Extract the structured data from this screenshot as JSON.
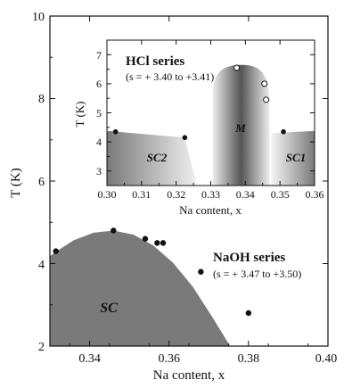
{
  "chart_data": [
    {
      "type": "scatter",
      "name": "main",
      "xlabel": "Na content, x",
      "ylabel": "T (K)",
      "xlim": [
        0.33,
        0.4
      ],
      "ylim": [
        2,
        10
      ],
      "xticks": [
        "0.34",
        "0.36",
        "0.38",
        "0.40"
      ],
      "yticks": [
        "2",
        "4",
        "6",
        "8",
        "10"
      ],
      "series": [
        {
          "name": "NaOH series",
          "subtitle": "(s = + 3.47 to +3.50)",
          "points": [
            {
              "x": 0.3315,
              "y": 4.3
            },
            {
              "x": 0.346,
              "y": 4.8
            },
            {
              "x": 0.354,
              "y": 4.6
            },
            {
              "x": 0.357,
              "y": 4.5
            },
            {
              "x": 0.3585,
              "y": 4.5
            },
            {
              "x": 0.368,
              "y": 3.8
            },
            {
              "x": 0.38,
              "y": 2.8
            }
          ]
        }
      ],
      "region_label": "SC",
      "region_color": "#7a7a7a"
    },
    {
      "type": "scatter",
      "name": "inset",
      "xlabel": "Na content, x",
      "ylabel": "T (K)",
      "xlim": [
        0.3,
        0.36
      ],
      "ylim": [
        2.5,
        7.5
      ],
      "xticks": [
        "0.30",
        "0.31",
        "0.32",
        "0.33",
        "0.34",
        "0.35",
        "0.36"
      ],
      "yticks": [
        "3",
        "4",
        "5",
        "6",
        "7"
      ],
      "series": [
        {
          "name": "HCl series",
          "subtitle": "(s = + 3.40 to +3.41)",
          "filled_points": [
            {
              "x": 0.3025,
              "y": 4.35
            },
            {
              "x": 0.3225,
              "y": 4.15
            },
            {
              "x": 0.351,
              "y": 4.35
            }
          ],
          "open_points": [
            {
              "x": 0.3375,
              "y": 6.55
            },
            {
              "x": 0.3455,
              "y": 6.0
            },
            {
              "x": 0.346,
              "y": 5.45
            }
          ]
        }
      ],
      "region_labels": [
        "SC2",
        "M",
        "SC1"
      ]
    }
  ]
}
